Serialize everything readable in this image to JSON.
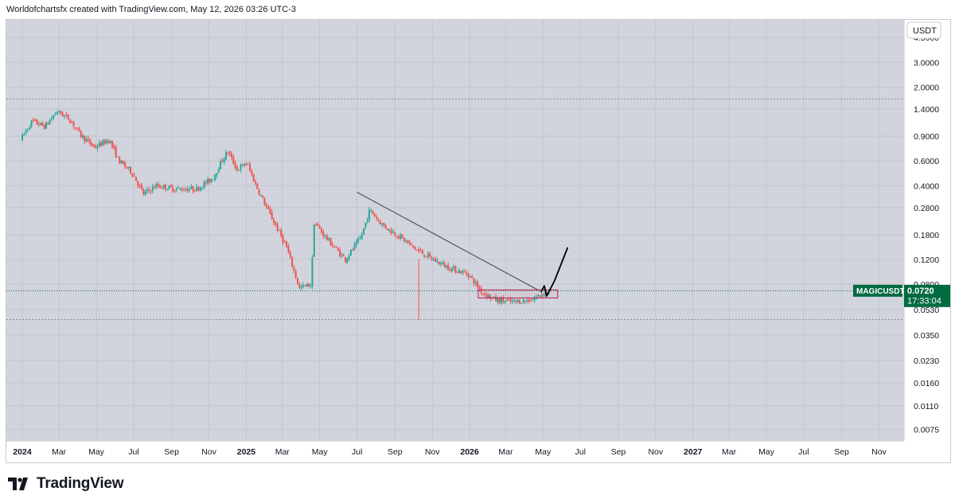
{
  "header": {
    "caption": "Worldofchartsfx created with TradingView.com, May 12, 2026 03:26 UTC-3"
  },
  "footer": {
    "brand": "TradingView"
  },
  "colors": {
    "background": "#d1d4dc",
    "up": "#26a69a",
    "down": "#ef5350",
    "label_bg": "#006b3f",
    "trendline": "#555555",
    "drawing": "#000000"
  },
  "chart_data": {
    "type": "candlestick",
    "symbol": "MAGICUSDT",
    "currency": "USDT",
    "scale": "log",
    "last_price": "0.0720",
    "countdown": "17:33:04",
    "price_ticks": [
      "4.5000",
      "3.0000",
      "2.0000",
      "1.4000",
      "0.9000",
      "0.6000",
      "0.4000",
      "0.2800",
      "0.1800",
      "0.1200",
      "0.0800",
      "0.0530",
      "0.0350",
      "0.0230",
      "0.0160",
      "0.0110",
      "0.0075"
    ],
    "time_ticks": [
      "2024",
      "Mar",
      "May",
      "Jul",
      "Sep",
      "Nov",
      "2025",
      "Mar",
      "May",
      "Jul",
      "Sep",
      "Nov",
      "2026",
      "Mar",
      "May",
      "Jul",
      "Sep",
      "Nov",
      "2027",
      "Mar",
      "May",
      "Jul",
      "Sep",
      "Nov"
    ],
    "time_ticks_bold": [
      "2024",
      "2025",
      "2026",
      "2027"
    ],
    "price_path": [
      {
        "t": "2024-01-01",
        "p": 0.85
      },
      {
        "t": "2024-01-20",
        "p": 1.15
      },
      {
        "t": "2024-02-10",
        "p": 1.05
      },
      {
        "t": "2024-03-01",
        "p": 1.35
      },
      {
        "t": "2024-03-20",
        "p": 1.2
      },
      {
        "t": "2024-04-10",
        "p": 0.9
      },
      {
        "t": "2024-05-01",
        "p": 0.75
      },
      {
        "t": "2024-05-25",
        "p": 0.85
      },
      {
        "t": "2024-06-10",
        "p": 0.6
      },
      {
        "t": "2024-07-01",
        "p": 0.5
      },
      {
        "t": "2024-07-20",
        "p": 0.35
      },
      {
        "t": "2024-08-10",
        "p": 0.4
      },
      {
        "t": "2024-09-10",
        "p": 0.38
      },
      {
        "t": "2024-10-15",
        "p": 0.38
      },
      {
        "t": "2024-11-10",
        "p": 0.45
      },
      {
        "t": "2024-11-25",
        "p": 0.6
      },
      {
        "t": "2024-12-05",
        "p": 0.7
      },
      {
        "t": "2024-12-20",
        "p": 0.52
      },
      {
        "t": "2025-01-05",
        "p": 0.58
      },
      {
        "t": "2025-01-20",
        "p": 0.4
      },
      {
        "t": "2025-02-10",
        "p": 0.26
      },
      {
        "t": "2025-03-10",
        "p": 0.15
      },
      {
        "t": "2025-04-01",
        "p": 0.075
      },
      {
        "t": "2025-04-20",
        "p": 0.08
      },
      {
        "t": "2025-04-25",
        "p": 0.22
      },
      {
        "t": "2025-05-20",
        "p": 0.16
      },
      {
        "t": "2025-06-15",
        "p": 0.12
      },
      {
        "t": "2025-07-10",
        "p": 0.17
      },
      {
        "t": "2025-07-25",
        "p": 0.27
      },
      {
        "t": "2025-08-15",
        "p": 0.21
      },
      {
        "t": "2025-09-15",
        "p": 0.17
      },
      {
        "t": "2025-10-10",
        "p": 0.14
      },
      {
        "t": "2025-11-05",
        "p": 0.12
      },
      {
        "t": "2025-12-01",
        "p": 0.105
      },
      {
        "t": "2026-01-01",
        "p": 0.095
      },
      {
        "t": "2026-01-25",
        "p": 0.07
      },
      {
        "t": "2026-02-15",
        "p": 0.062
      },
      {
        "t": "2026-03-15",
        "p": 0.06
      },
      {
        "t": "2026-04-15",
        "p": 0.062
      },
      {
        "t": "2026-05-12",
        "p": 0.072
      }
    ],
    "wick_spike": {
      "t": "2025-10-10",
      "high": 0.12,
      "low": 0.045
    },
    "resistance_level": 1.65,
    "support_level": 0.045,
    "trendline": {
      "from": {
        "t": "2025-07-01",
        "p": 0.36
      },
      "to": {
        "t": "2026-04-25",
        "p": 0.072
      }
    },
    "range_box": {
      "from_t": "2026-01-15",
      "to_t": "2026-05-25",
      "top": 0.073,
      "bottom": 0.064
    },
    "projection": [
      {
        "t": "2026-04-28",
        "p": 0.071
      },
      {
        "t": "2026-05-03",
        "p": 0.078
      },
      {
        "t": "2026-05-07",
        "p": 0.066
      },
      {
        "t": "2026-05-20",
        "p": 0.085
      },
      {
        "t": "2026-06-10",
        "p": 0.145
      }
    ]
  }
}
